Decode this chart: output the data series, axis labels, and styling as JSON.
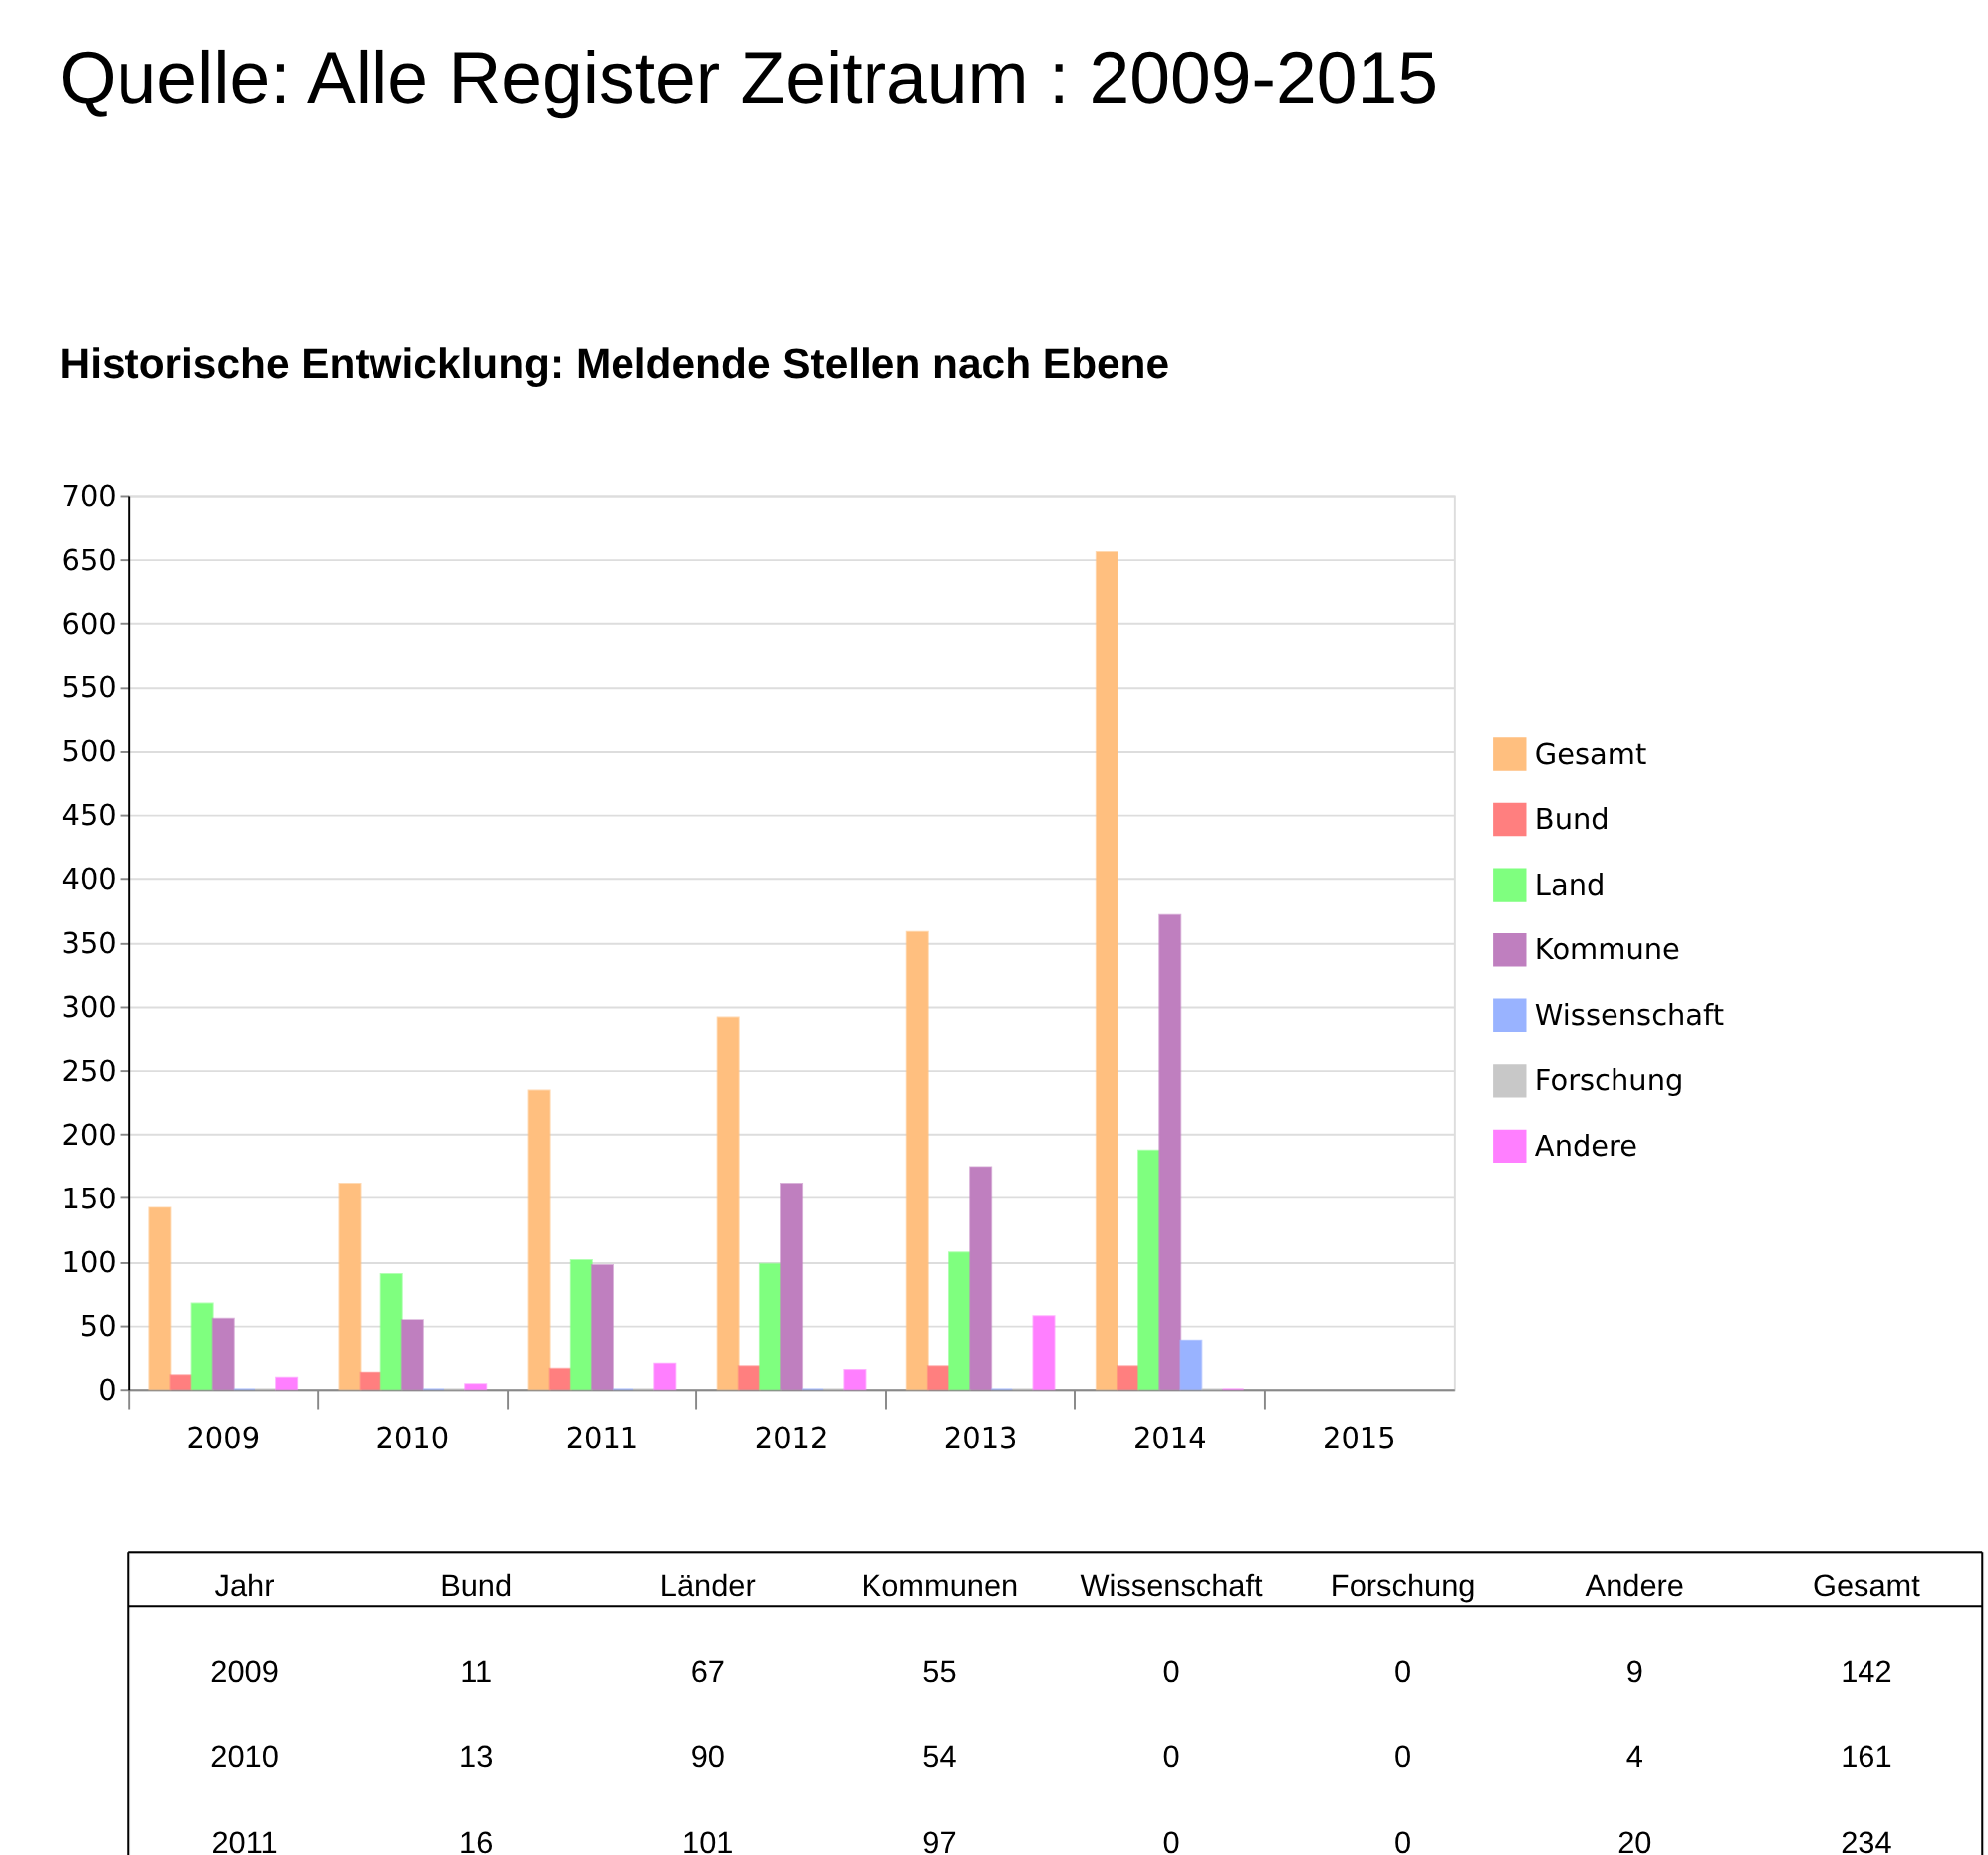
{
  "chart_data": {
    "type": "bar",
    "title": "Quelle: Alle Register Zeitraum : 2009-2015",
    "subtitle": "Historische Entwicklung: Meldende Stellen nach Ebene",
    "categories": [
      "2009",
      "2010",
      "2011",
      "2012",
      "2013",
      "2014",
      "2015"
    ],
    "series": [
      {
        "name": "Gesamt",
        "color": "#ffbf7f",
        "values": [
          142,
          161,
          234,
          291,
          358,
          656,
          null
        ]
      },
      {
        "name": "Bund",
        "color": "#ff7f7f",
        "values": [
          11,
          13,
          16,
          18,
          18,
          18,
          null
        ]
      },
      {
        "name": "Land",
        "color": "#7fff7f",
        "values": [
          67,
          90,
          101,
          98,
          107,
          187,
          null
        ]
      },
      {
        "name": "Kommune",
        "color": "#bf7fbf",
        "values": [
          55,
          54,
          97,
          161,
          174,
          372,
          null
        ]
      },
      {
        "name": "Wissenschaft",
        "color": "#99b3ff",
        "values": [
          0,
          0,
          0,
          0,
          0,
          38,
          null
        ]
      },
      {
        "name": "Forschung",
        "color": "#c8c8c8",
        "values": [
          0,
          0,
          0,
          0,
          0,
          0,
          null
        ]
      },
      {
        "name": "Andere",
        "color": "#ff7fff",
        "values": [
          9,
          4,
          20,
          15,
          57,
          0,
          null
        ]
      }
    ],
    "annotations": [
      "Jahr",
      "Bund",
      "Länder",
      "Kommunen",
      "Wissenschaft",
      "Forschung",
      "Andere",
      "Gesamt",
      "2009",
      "11",
      "67",
      "55",
      "0",
      "0",
      "9",
      "142",
      "2010",
      "13",
      "90",
      "54",
      "0",
      "0",
      "4",
      "161",
      "2011",
      "16",
      "101",
      "97",
      "0",
      "0",
      "20",
      "234"
    ],
    "ylim": [
      0,
      700
    ],
    "yticks": [
      0,
      50,
      100,
      150,
      200,
      250,
      300,
      350,
      400,
      450,
      500,
      550,
      600,
      650,
      700
    ],
    "grid": "y",
    "legend": "right"
  }
}
